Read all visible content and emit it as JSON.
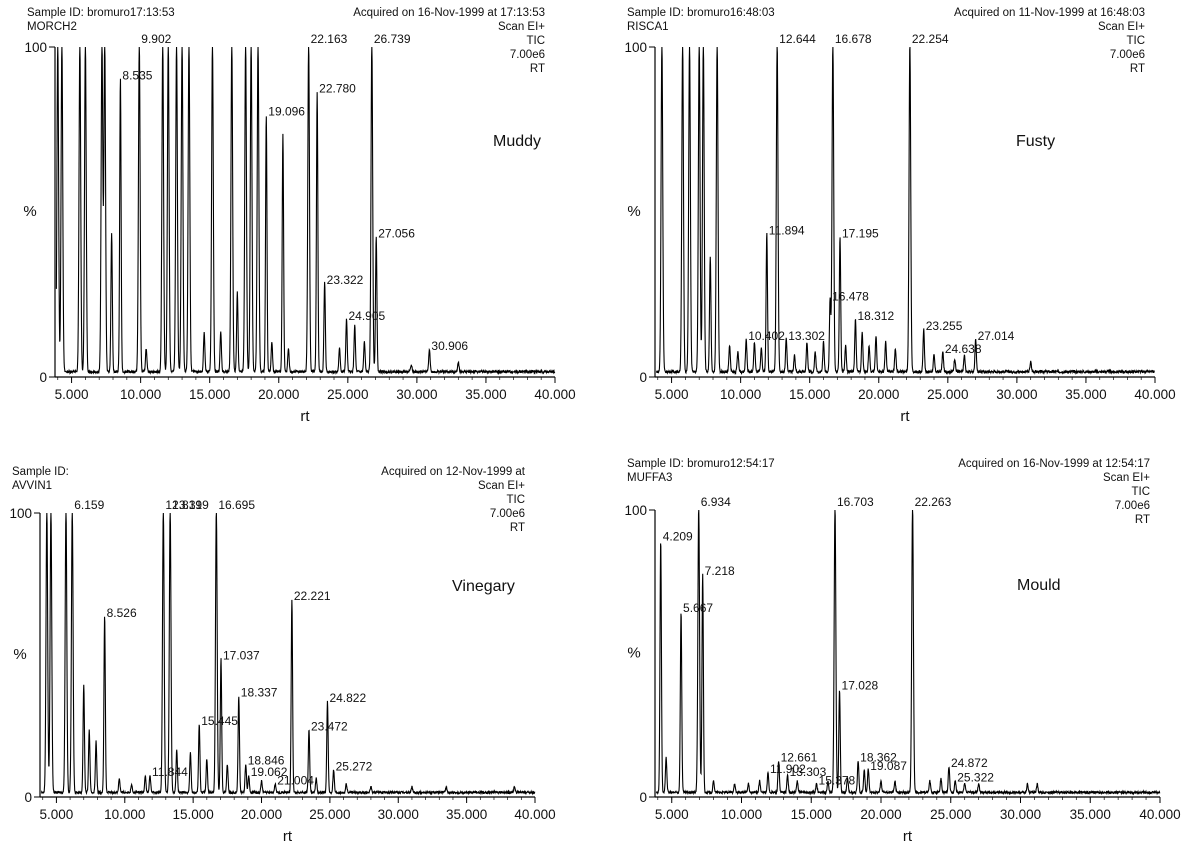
{
  "chart_data": [
    {
      "type": "line",
      "sample_id": "Sample ID: bromuro17:13:53",
      "sample_name": "MORCH2",
      "acquired": "Acquired on 16-Nov-1999 at 17:13:53",
      "scan": "Scan EI+",
      "mode": "TIC",
      "scale": "7.00e6",
      "rt_label": "RT",
      "odor": "Muddy",
      "xlabel": "rt",
      "ylabel": "%",
      "xlim": [
        3.8,
        40.0
      ],
      "ylim": [
        0,
        100
      ],
      "xticks": [
        "5.000",
        "10.000",
        "15.000",
        "20.000",
        "25.000",
        "30.000",
        "35.000",
        "40.000"
      ],
      "yticks": [
        "0",
        "100"
      ],
      "labeled_peaks": [
        {
          "rt": 8.535,
          "label": "8.535",
          "height": 89
        },
        {
          "rt": 9.902,
          "label": "9.902",
          "height": 100
        },
        {
          "rt": 19.096,
          "label": "19.096",
          "height": 78
        },
        {
          "rt": 22.163,
          "label": "22.163",
          "height": 100
        },
        {
          "rt": 22.78,
          "label": "22.780",
          "height": 85
        },
        {
          "rt": 26.739,
          "label": "26.739",
          "height": 100
        },
        {
          "rt": 27.056,
          "label": "27.056",
          "height": 41
        },
        {
          "rt": 23.322,
          "label": "23.322",
          "height": 27
        },
        {
          "rt": 24.905,
          "label": "24.905",
          "height": 16
        },
        {
          "rt": 30.906,
          "label": "30.906",
          "height": 7
        }
      ],
      "peaks": [
        [
          4.0,
          100
        ],
        [
          4.3,
          100
        ],
        [
          5.6,
          100
        ],
        [
          6.0,
          100
        ],
        [
          7.2,
          100
        ],
        [
          7.4,
          100
        ],
        [
          7.9,
          42
        ],
        [
          8.535,
          89
        ],
        [
          9.902,
          100
        ],
        [
          10.4,
          7
        ],
        [
          11.6,
          100
        ],
        [
          12.0,
          100
        ],
        [
          12.6,
          100
        ],
        [
          13.0,
          100
        ],
        [
          13.5,
          100
        ],
        [
          14.6,
          12
        ],
        [
          15.2,
          100
        ],
        [
          15.8,
          12
        ],
        [
          16.6,
          100
        ],
        [
          17.0,
          24
        ],
        [
          17.6,
          100
        ],
        [
          18.0,
          100
        ],
        [
          18.5,
          100
        ],
        [
          19.096,
          78
        ],
        [
          19.5,
          9
        ],
        [
          20.3,
          72
        ],
        [
          20.7,
          7
        ],
        [
          22.163,
          100
        ],
        [
          22.78,
          85
        ],
        [
          23.322,
          27
        ],
        [
          24.4,
          7
        ],
        [
          24.905,
          16
        ],
        [
          25.5,
          14
        ],
        [
          26.2,
          9
        ],
        [
          26.739,
          100
        ],
        [
          27.056,
          41
        ],
        [
          29.6,
          2
        ],
        [
          30.906,
          7
        ],
        [
          33.0,
          3
        ]
      ]
    },
    {
      "type": "line",
      "sample_id": "Sample ID: bromuro16:48:03",
      "sample_name": "RISCA1",
      "acquired": "Acquired on 11-Nov-1999 at 16:48:03",
      "scan": "Scan EI+",
      "mode": "TIC",
      "scale": "7.00e6",
      "rt_label": "RT",
      "odor": "Fusty",
      "xlabel": "rt",
      "ylabel": "%",
      "xlim": [
        3.8,
        40.0
      ],
      "ylim": [
        0,
        100
      ],
      "xticks": [
        "5.000",
        "10.000",
        "15.000",
        "20.000",
        "25.000",
        "30.000",
        "35.000",
        "40.000"
      ],
      "yticks": [
        "0",
        "100"
      ],
      "labeled_peaks": [
        {
          "rt": 12.644,
          "label": "12.644",
          "height": 100
        },
        {
          "rt": 16.678,
          "label": "16.678",
          "height": 100
        },
        {
          "rt": 22.254,
          "label": "22.254",
          "height": 100
        },
        {
          "rt": 11.894,
          "label": "11.894",
          "height": 42
        },
        {
          "rt": 17.195,
          "label": "17.195",
          "height": 41
        },
        {
          "rt": 16.478,
          "label": "16.478",
          "height": 22
        },
        {
          "rt": 18.312,
          "label": "18.312",
          "height": 16
        },
        {
          "rt": 13.302,
          "label": "13.302",
          "height": 10
        },
        {
          "rt": 10.402,
          "label": "10.402",
          "height": 10
        },
        {
          "rt": 23.255,
          "label": "23.255",
          "height": 13
        },
        {
          "rt": 27.014,
          "label": "27.014",
          "height": 10
        },
        {
          "rt": 24.638,
          "label": "24.638",
          "height": 6
        }
      ],
      "peaks": [
        [
          4.3,
          100
        ],
        [
          5.8,
          100
        ],
        [
          6.3,
          100
        ],
        [
          7.0,
          100
        ],
        [
          7.3,
          100
        ],
        [
          7.8,
          35
        ],
        [
          8.3,
          100
        ],
        [
          9.2,
          8
        ],
        [
          9.8,
          6
        ],
        [
          10.402,
          10
        ],
        [
          11.0,
          9
        ],
        [
          11.5,
          7
        ],
        [
          11.894,
          42
        ],
        [
          12.644,
          100
        ],
        [
          13.302,
          10
        ],
        [
          13.9,
          5
        ],
        [
          14.8,
          9
        ],
        [
          15.4,
          6
        ],
        [
          16.0,
          9
        ],
        [
          16.478,
          22
        ],
        [
          16.678,
          100
        ],
        [
          17.195,
          41
        ],
        [
          17.6,
          8
        ],
        [
          18.312,
          16
        ],
        [
          18.8,
          12
        ],
        [
          19.3,
          8
        ],
        [
          19.8,
          11
        ],
        [
          20.5,
          9
        ],
        [
          21.2,
          7
        ],
        [
          22.254,
          100
        ],
        [
          23.255,
          13
        ],
        [
          24.0,
          5
        ],
        [
          24.638,
          6
        ],
        [
          25.5,
          4
        ],
        [
          26.2,
          5
        ],
        [
          27.014,
          10
        ],
        [
          31.0,
          3
        ]
      ]
    },
    {
      "type": "line",
      "sample_id": "Sample ID:",
      "sample_name": "AVVIN1",
      "acquired": "Acquired on 12-Nov-1999 at",
      "scan": "Scan EI+",
      "mode": "TIC",
      "scale": "7.00e6",
      "rt_label": "RT",
      "odor": "Vinegary",
      "xlabel": "rt",
      "ylabel": "%",
      "xlim": [
        3.8,
        40.0
      ],
      "ylim": [
        0,
        100
      ],
      "xticks": [
        "5.000",
        "10.000",
        "15.000",
        "20.000",
        "25.000",
        "30.000",
        "35.000",
        "40.000"
      ],
      "yticks": [
        "0",
        "100"
      ],
      "labeled_peaks": [
        {
          "rt": 6.159,
          "label": "6.159",
          "height": 100
        },
        {
          "rt": 12.819,
          "label": "12.819",
          "height": 100
        },
        {
          "rt": 13.319,
          "label": "13.319",
          "height": 100
        },
        {
          "rt": 16.695,
          "label": "16.695",
          "height": 100
        },
        {
          "rt": 8.526,
          "label": "8.526",
          "height": 62
        },
        {
          "rt": 22.221,
          "label": "22.221",
          "height": 68
        },
        {
          "rt": 17.037,
          "label": "17.037",
          "height": 47
        },
        {
          "rt": 18.337,
          "label": "18.337",
          "height": 34
        },
        {
          "rt": 15.445,
          "label": "15.445",
          "height": 24
        },
        {
          "rt": 24.822,
          "label": "24.822",
          "height": 32
        },
        {
          "rt": 23.472,
          "label": "23.472",
          "height": 22
        },
        {
          "rt": 18.846,
          "label": "18.846",
          "height": 10
        },
        {
          "rt": 19.062,
          "label": "19.062",
          "height": 6
        },
        {
          "rt": 11.844,
          "label": "11.844",
          "height": 6
        },
        {
          "rt": 25.272,
          "label": "25.272",
          "height": 8
        },
        {
          "rt": 21.004,
          "label": "21.004",
          "height": 3
        }
      ],
      "peaks": [
        [
          4.3,
          100
        ],
        [
          4.6,
          100
        ],
        [
          5.7,
          100
        ],
        [
          6.159,
          100
        ],
        [
          7.0,
          38
        ],
        [
          7.4,
          22
        ],
        [
          7.9,
          18
        ],
        [
          8.526,
          62
        ],
        [
          9.6,
          5
        ],
        [
          10.5,
          3
        ],
        [
          11.5,
          6
        ],
        [
          11.844,
          6
        ],
        [
          12.819,
          100
        ],
        [
          13.319,
          100
        ],
        [
          13.8,
          15
        ],
        [
          14.8,
          14
        ],
        [
          15.445,
          24
        ],
        [
          16.0,
          12
        ],
        [
          16.695,
          100
        ],
        [
          17.037,
          47
        ],
        [
          17.5,
          10
        ],
        [
          18.337,
          34
        ],
        [
          18.846,
          10
        ],
        [
          19.062,
          6
        ],
        [
          20.0,
          4
        ],
        [
          21.004,
          3
        ],
        [
          22.221,
          68
        ],
        [
          23.472,
          22
        ],
        [
          24.0,
          5
        ],
        [
          24.822,
          32
        ],
        [
          25.272,
          8
        ],
        [
          26.2,
          3
        ],
        [
          28.0,
          2
        ],
        [
          31.0,
          2
        ],
        [
          33.5,
          2
        ],
        [
          38.5,
          2
        ]
      ]
    },
    {
      "type": "line",
      "sample_id": "Sample ID: bromuro12:54:17",
      "sample_name": "MUFFA3",
      "acquired": "Acquired on 16-Nov-1999 at 12:54:17",
      "scan": "Scan EI+",
      "mode": "TIC",
      "scale": "7.00e6",
      "rt_label": "RT",
      "odor": "Mould",
      "xlabel": "rt",
      "ylabel": "%",
      "xlim": [
        3.8,
        40.0
      ],
      "ylim": [
        0,
        100
      ],
      "xticks": [
        "5.000",
        "10.000",
        "15.000",
        "20.000",
        "25.000",
        "30.000",
        "35.000",
        "40.000"
      ],
      "yticks": [
        "0",
        "100"
      ],
      "labeled_peaks": [
        {
          "rt": 4.209,
          "label": "4.209",
          "height": 88
        },
        {
          "rt": 6.934,
          "label": "6.934",
          "height": 100
        },
        {
          "rt": 7.218,
          "label": "7.218",
          "height": 76
        },
        {
          "rt": 5.667,
          "label": "5.667",
          "height": 63
        },
        {
          "rt": 16.703,
          "label": "16.703",
          "height": 100
        },
        {
          "rt": 22.263,
          "label": "22.263",
          "height": 100
        },
        {
          "rt": 17.028,
          "label": "17.028",
          "height": 36
        },
        {
          "rt": 12.661,
          "label": "12.661",
          "height": 11
        },
        {
          "rt": 11.902,
          "label": "11.902",
          "height": 7
        },
        {
          "rt": 13.303,
          "label": "13.303",
          "height": 6
        },
        {
          "rt": 15.378,
          "label": "15.378",
          "height": 3
        },
        {
          "rt": 18.362,
          "label": "18.362",
          "height": 11
        },
        {
          "rt": 19.087,
          "label": "19.087",
          "height": 8
        },
        {
          "rt": 24.872,
          "label": "24.872",
          "height": 9
        },
        {
          "rt": 25.322,
          "label": "25.322",
          "height": 4
        }
      ],
      "peaks": [
        [
          4.209,
          88
        ],
        [
          4.6,
          12
        ],
        [
          5.667,
          63
        ],
        [
          6.934,
          100
        ],
        [
          7.218,
          76
        ],
        [
          8.0,
          4
        ],
        [
          9.5,
          3
        ],
        [
          10.5,
          3
        ],
        [
          11.3,
          4
        ],
        [
          11.902,
          7
        ],
        [
          12.661,
          11
        ],
        [
          13.303,
          6
        ],
        [
          14.0,
          4
        ],
        [
          15.378,
          3
        ],
        [
          16.2,
          4
        ],
        [
          16.703,
          100
        ],
        [
          17.028,
          36
        ],
        [
          17.6,
          5
        ],
        [
          18.362,
          11
        ],
        [
          18.8,
          8
        ],
        [
          19.087,
          8
        ],
        [
          20.0,
          4
        ],
        [
          21.0,
          4
        ],
        [
          22.263,
          100
        ],
        [
          23.5,
          4
        ],
        [
          24.3,
          5
        ],
        [
          24.872,
          9
        ],
        [
          25.322,
          4
        ],
        [
          26.0,
          3
        ],
        [
          27.0,
          3
        ],
        [
          30.5,
          3
        ],
        [
          31.2,
          3
        ]
      ]
    }
  ]
}
